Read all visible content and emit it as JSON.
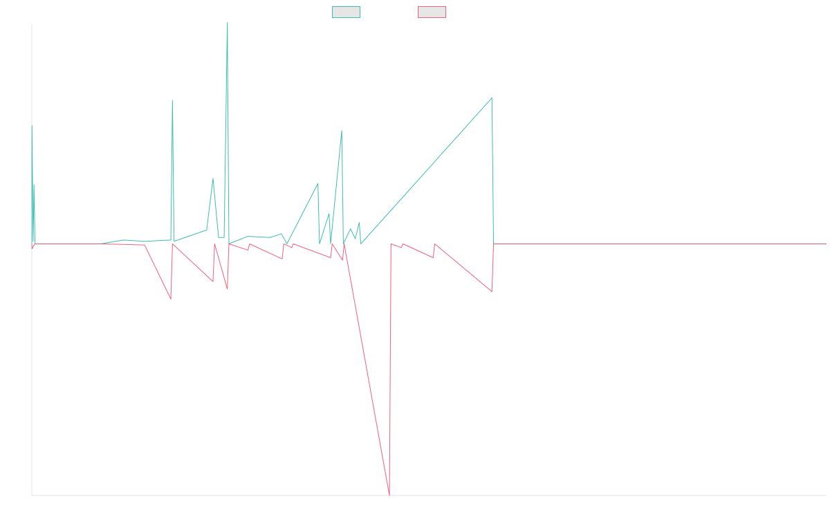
{
  "chart_data": {
    "type": "line",
    "title": "",
    "xlabel": "",
    "ylabel": "",
    "legend_position": "top-center",
    "grid": false,
    "x_range": [
      0,
      1000
    ],
    "ylim": [
      -100,
      87
    ],
    "series": [
      {
        "color": "#3dbdb3",
        "points": [
          [
            0,
            0
          ],
          [
            0.2,
            47
          ],
          [
            1.6,
            1
          ],
          [
            2.8,
            23.5
          ],
          [
            4,
            0
          ],
          [
            87,
            0
          ],
          [
            115,
            1.5
          ],
          [
            142,
            1
          ],
          [
            175,
            1.5
          ],
          [
            177,
            57
          ],
          [
            179,
            1
          ],
          [
            220,
            5.5
          ],
          [
            228,
            26
          ],
          [
            235,
            2.5
          ],
          [
            242,
            2.5
          ],
          [
            246,
            88
          ],
          [
            248,
            0
          ],
          [
            272,
            3
          ],
          [
            300,
            2.5
          ],
          [
            314,
            4
          ],
          [
            321,
            0
          ],
          [
            360,
            24
          ],
          [
            362,
            0
          ],
          [
            374,
            12
          ],
          [
            376,
            0
          ],
          [
            390,
            45
          ],
          [
            392,
            0
          ],
          [
            401,
            6
          ],
          [
            407,
            2
          ],
          [
            412,
            8.5
          ],
          [
            414,
            0
          ],
          [
            579,
            58
          ],
          [
            581,
            0
          ],
          [
            1000,
            0
          ]
        ]
      },
      {
        "color": "#f0607f",
        "points": [
          [
            0,
            0
          ],
          [
            0.3,
            -2
          ],
          [
            1.6,
            -1
          ],
          [
            4,
            0
          ],
          [
            87,
            0
          ],
          [
            142,
            -0.5
          ],
          [
            175,
            -22
          ],
          [
            177,
            0
          ],
          [
            228,
            -15
          ],
          [
            230,
            0
          ],
          [
            246,
            -18
          ],
          [
            248,
            0
          ],
          [
            272,
            -2.5
          ],
          [
            274,
            0
          ],
          [
            315,
            -6
          ],
          [
            317,
            0
          ],
          [
            327,
            -1.5
          ],
          [
            329,
            0
          ],
          [
            376,
            -5.5
          ],
          [
            378,
            0
          ],
          [
            391,
            -6.5
          ],
          [
            393,
            0
          ],
          [
            450,
            -100
          ],
          [
            452,
            0
          ],
          [
            465,
            -1.5
          ],
          [
            467,
            0
          ],
          [
            505,
            -5.5
          ],
          [
            507,
            0
          ],
          [
            579,
            -19
          ],
          [
            581,
            0
          ],
          [
            1000,
            0
          ]
        ]
      }
    ]
  }
}
